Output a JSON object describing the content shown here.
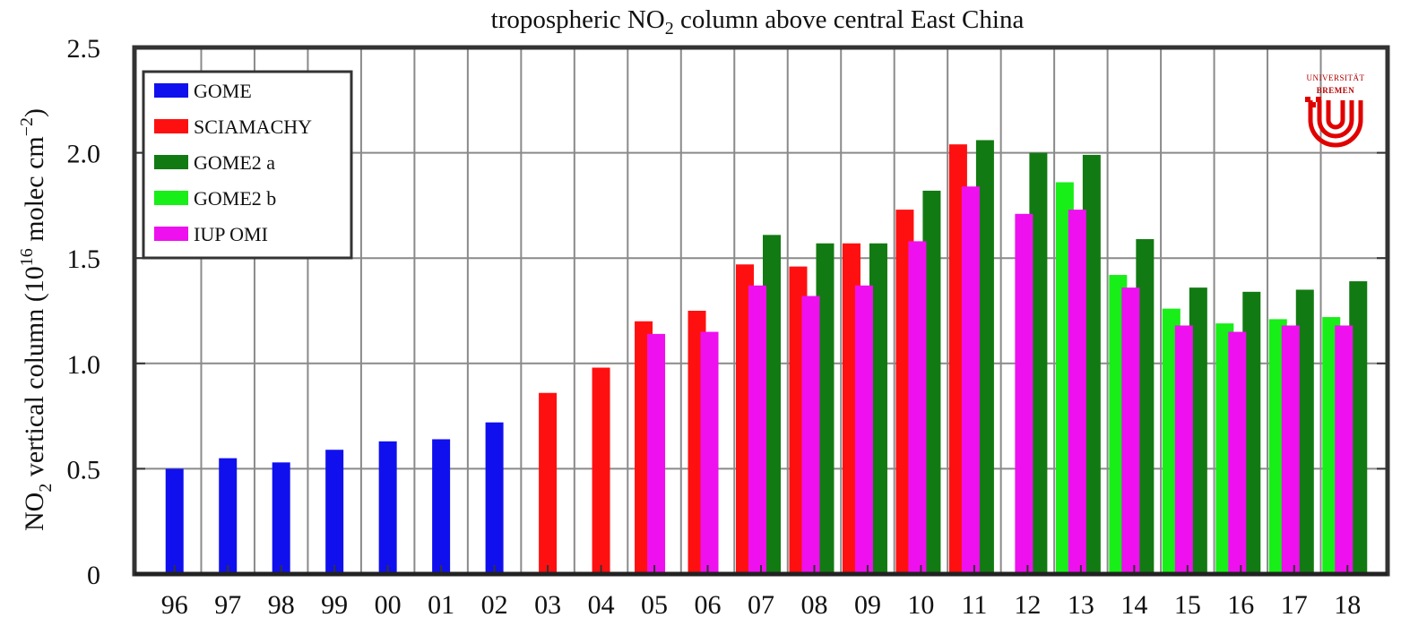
{
  "chart_data": {
    "type": "bar",
    "title_parts": [
      "tropospheric NO",
      "2",
      " column above central East China"
    ],
    "ylabel_parts": [
      "NO",
      "2",
      " vertical column (10",
      "16",
      " molec cm",
      "−2",
      ")"
    ],
    "ylim": [
      0,
      2.5
    ],
    "yticks": [
      "0",
      "0.5",
      "1.0",
      "1.5",
      "2.0",
      "2.5"
    ],
    "grid": true,
    "legend_position": "top-left",
    "categories": [
      "96",
      "97",
      "98",
      "99",
      "00",
      "01",
      "02",
      "03",
      "04",
      "05",
      "06",
      "07",
      "08",
      "09",
      "10",
      "11",
      "12",
      "13",
      "14",
      "15",
      "16",
      "17",
      "18"
    ],
    "series": [
      {
        "name": "GOME",
        "color": "#1010ee",
        "values": [
          0.5,
          0.55,
          0.53,
          0.59,
          0.63,
          0.64,
          0.72,
          null,
          null,
          null,
          null,
          null,
          null,
          null,
          null,
          null,
          null,
          null,
          null,
          null,
          null,
          null,
          null
        ]
      },
      {
        "name": "SCIAMACHY",
        "color": "#ff1010",
        "values": [
          null,
          null,
          null,
          null,
          null,
          null,
          null,
          0.86,
          0.98,
          1.2,
          1.25,
          1.47,
          1.46,
          1.57,
          1.73,
          2.04,
          null,
          null,
          null,
          null,
          null,
          null,
          null
        ]
      },
      {
        "name": "GOME2 a",
        "color": "#127a12",
        "values": [
          null,
          null,
          null,
          null,
          null,
          null,
          null,
          null,
          null,
          null,
          null,
          1.61,
          1.57,
          1.57,
          1.82,
          2.06,
          2.0,
          1.99,
          1.59,
          1.36,
          1.34,
          1.35,
          1.39
        ]
      },
      {
        "name": "GOME2 b",
        "color": "#18ee18",
        "values": [
          null,
          null,
          null,
          null,
          null,
          null,
          null,
          null,
          null,
          null,
          null,
          null,
          null,
          null,
          null,
          null,
          null,
          1.86,
          1.42,
          1.26,
          1.19,
          1.21,
          1.22
        ]
      },
      {
        "name": "IUP OMI",
        "color": "#ee10ee",
        "values": [
          null,
          null,
          null,
          null,
          null,
          null,
          null,
          null,
          null,
          1.14,
          1.15,
          1.37,
          1.32,
          1.37,
          1.58,
          1.84,
          1.71,
          1.73,
          1.36,
          1.18,
          1.15,
          1.18,
          1.18
        ]
      }
    ],
    "logo_text": "BREMEN"
  }
}
